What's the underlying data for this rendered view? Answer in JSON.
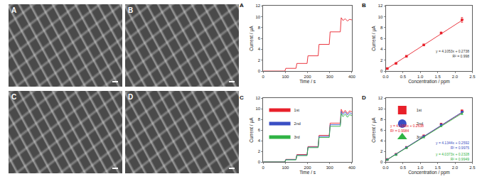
{
  "micrographs": {
    "panels": [
      {
        "label": "A"
      },
      {
        "label": "B"
      },
      {
        "label": "C"
      },
      {
        "label": "D"
      }
    ]
  },
  "chart_data": [
    {
      "label": "A",
      "type": "line",
      "x_label": "Time / s",
      "y_label": "Current / μA",
      "xlim": [
        0,
        400
      ],
      "xticks": [
        0,
        100,
        200,
        300,
        400
      ],
      "ylim": [
        0,
        12
      ],
      "yticks": [
        0,
        2,
        4,
        6,
        8,
        10,
        12
      ],
      "grid": false,
      "series": [
        {
          "color": "#e8202a",
          "x": [
            0,
            98,
            102,
            148,
            152,
            198,
            202,
            248,
            252,
            298,
            302,
            348,
            352,
            360,
            370,
            380,
            390,
            400
          ],
          "values": [
            0,
            0,
            0.5,
            0.5,
            1.4,
            1.4,
            2.8,
            2.8,
            4.9,
            4.9,
            7.2,
            7.2,
            9.8,
            9.3,
            9.6,
            9.2,
            9.5,
            9.4
          ]
        }
      ]
    },
    {
      "label": "B",
      "type": "scatter",
      "x_label": "Concentration / ppm",
      "y_label": "Current / μA",
      "xlim": [
        0,
        2.5
      ],
      "xticks": [
        {
          "value": 0,
          "label": "0.0"
        },
        0.5,
        {
          "value": 1,
          "label": "1.0"
        },
        1.5,
        {
          "value": 2,
          "label": "2.0"
        },
        2.5
      ],
      "ylim": [
        0,
        12
      ],
      "yticks": [
        0,
        2,
        4,
        6,
        8,
        10,
        12
      ],
      "grid": false,
      "series": [
        {
          "color": "#e8202a",
          "marker": "square",
          "x": [
            0.05,
            0.3,
            0.6,
            1.1,
            1.6,
            2.2
          ],
          "values": [
            0.45,
            1.4,
            2.7,
            4.8,
            7.0,
            9.4
          ],
          "error": [
            0.05,
            0.08,
            0.1,
            0.12,
            0.15,
            0.45
          ],
          "fit": {
            "x": [
              0,
              2.25
            ],
            "values": [
              0.27,
              9.51
            ]
          }
        }
      ],
      "annotations": [
        {
          "text": [
            "y = 4.1053x + 0.2738",
            "R² = 0.998"
          ],
          "color": "#333333"
        }
      ]
    },
    {
      "label": "C",
      "type": "line",
      "x_label": "Time / s",
      "y_label": "Current / μA",
      "xlim": [
        0,
        400
      ],
      "xticks": [
        0,
        100,
        200,
        300,
        400
      ],
      "ylim": [
        0,
        12
      ],
      "yticks": [
        0,
        2,
        4,
        6,
        8,
        10,
        12
      ],
      "grid": false,
      "legend": "top-left",
      "series": [
        {
          "name": "1st",
          "color": "#e8202a",
          "x": [
            0,
            98,
            102,
            148,
            152,
            198,
            202,
            248,
            252,
            298,
            302,
            348,
            352,
            360,
            370,
            380,
            390,
            400
          ],
          "values": [
            0,
            0,
            0.5,
            0.5,
            1.4,
            1.4,
            2.9,
            2.9,
            5.0,
            5.0,
            7.3,
            7.3,
            9.9,
            9.2,
            9.7,
            9.1,
            9.6,
            9.4
          ]
        },
        {
          "name": "2nd",
          "color": "#3a4fc4",
          "x": [
            0,
            98,
            102,
            148,
            152,
            198,
            202,
            248,
            252,
            298,
            302,
            348,
            352,
            360,
            370,
            380,
            390,
            400
          ],
          "values": [
            0,
            0,
            0.45,
            0.45,
            1.3,
            1.3,
            2.8,
            2.8,
            4.8,
            4.8,
            7.0,
            7.0,
            9.5,
            8.9,
            9.4,
            8.8,
            9.3,
            9.0
          ]
        },
        {
          "name": "3rd",
          "color": "#2fb344",
          "x": [
            0,
            98,
            102,
            148,
            152,
            198,
            202,
            248,
            252,
            298,
            302,
            348,
            352,
            360,
            370,
            380,
            390,
            400
          ],
          "values": [
            0,
            0,
            0.4,
            0.4,
            1.2,
            1.2,
            2.7,
            2.7,
            4.6,
            4.6,
            6.7,
            6.7,
            9.1,
            8.5,
            9.0,
            8.4,
            8.9,
            8.7
          ]
        }
      ]
    },
    {
      "label": "D",
      "type": "scatter",
      "x_label": "Concentration / ppm",
      "y_label": "Current / μA",
      "xlim": [
        0,
        2.5
      ],
      "xticks": [
        {
          "value": 0,
          "label": "0.0"
        },
        0.5,
        {
          "value": 1,
          "label": "1.0"
        },
        1.5,
        {
          "value": 2,
          "label": "2.0"
        },
        2.5
      ],
      "ylim": [
        0,
        12
      ],
      "yticks": [
        0,
        2,
        4,
        6,
        8,
        10,
        12
      ],
      "grid": false,
      "legend": "top-left",
      "series": [
        {
          "name": "1st",
          "color": "#e8202a",
          "marker": "square",
          "x": [
            0.05,
            0.3,
            0.6,
            1.1,
            1.6,
            2.2
          ],
          "values": [
            0.47,
            1.45,
            2.75,
            4.9,
            7.1,
            9.6
          ],
          "fit": {
            "x": [
              0,
              2.25
            ],
            "values": [
              0.26,
              9.5
            ]
          }
        },
        {
          "name": "2nd",
          "color": "#3a4fc4",
          "marker": "circle",
          "x": [
            0.05,
            0.3,
            0.6,
            1.1,
            1.6,
            2.2
          ],
          "values": [
            0.45,
            1.4,
            2.7,
            4.8,
            7.0,
            9.4
          ],
          "fit": {
            "x": [
              0,
              2.25
            ],
            "values": [
              0.26,
              9.56
            ]
          }
        },
        {
          "name": "3rd",
          "color": "#2fb344",
          "marker": "triangle-up",
          "x": [
            0.05,
            0.3,
            0.6,
            1.1,
            1.6,
            2.2
          ],
          "values": [
            0.42,
            1.3,
            2.6,
            4.6,
            6.7,
            9.0
          ],
          "fit": {
            "x": [
              0,
              2.25
            ],
            "values": [
              0.23,
              9.32
            ]
          }
        }
      ],
      "annotations": [
        {
          "text": [
            "y = 4.1068x + 0.2638",
            "R² = 0.9984"
          ],
          "color": "#e8202a"
        },
        {
          "text": [
            "y = 4.1344x + 0.2592",
            "R² = 0.9975"
          ],
          "color": "#3a4fc4"
        },
        {
          "text": [
            "y = 4.0373x + 0.2328",
            "R² = 0.9949"
          ],
          "color": "#2fb344"
        }
      ]
    }
  ]
}
